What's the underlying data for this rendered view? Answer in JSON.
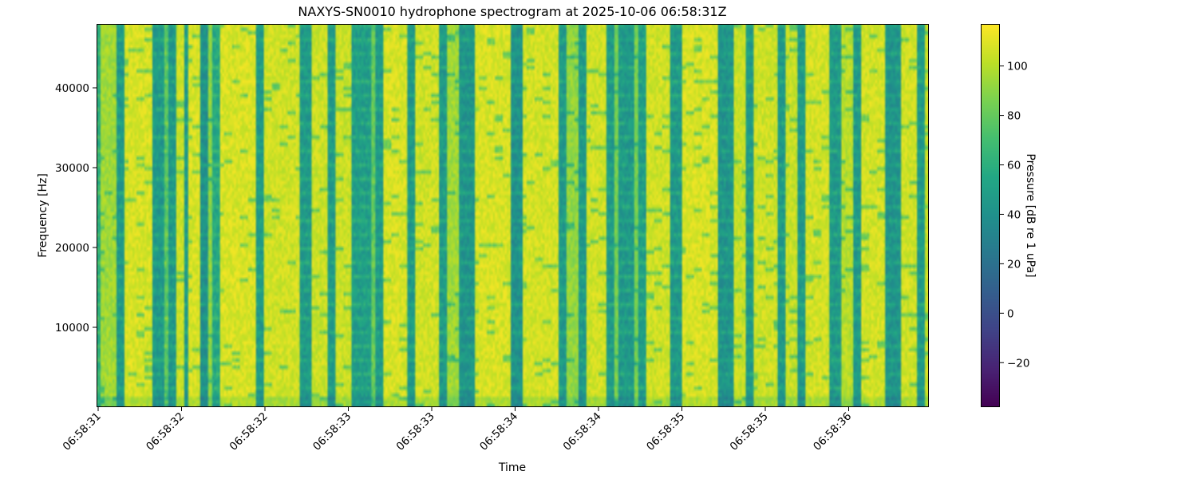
{
  "chart_data": {
    "type": "heatmap",
    "title": "NAXYS-SN0010 hydrophone spectrogram at 2025-10-06 06:58:31Z",
    "xlabel": "Time",
    "ylabel": "Frequency [Hz]",
    "colorbar_label": "Pressure [dB re 1 uPa]",
    "colormap": "viridis",
    "clim": [
      -38,
      117
    ],
    "ylim": [
      0,
      48000
    ],
    "yticks": [
      10000,
      20000,
      30000,
      40000
    ],
    "xtick_labels": [
      "06:58:31",
      "06:58:32",
      "06:58:32",
      "06:58:33",
      "06:58:33",
      "06:58:34",
      "06:58:34",
      "06:58:35",
      "06:58:35",
      "06:58:36"
    ],
    "colorbar_ticks": [
      -20,
      0,
      20,
      40,
      60,
      80,
      100
    ],
    "grid": false,
    "column_level_db": [
      60,
      95,
      95,
      95,
      95,
      45,
      45,
      108,
      108,
      108,
      108,
      108,
      108,
      108,
      45,
      45,
      45,
      75,
      45,
      45,
      105,
      105,
      45,
      108,
      108,
      108,
      40,
      40,
      90,
      55,
      55,
      108,
      108,
      108,
      108,
      108,
      108,
      108,
      108,
      108,
      45,
      45,
      106,
      106,
      106,
      106,
      106,
      106,
      106,
      106,
      106,
      45,
      45,
      45,
      105,
      105,
      105,
      105,
      45,
      45,
      105,
      105,
      105,
      105,
      48,
      48,
      48,
      48,
      48,
      80,
      45,
      45,
      108,
      108,
      108,
      108,
      108,
      108,
      45,
      45,
      106,
      106,
      106,
      106,
      106,
      106,
      45,
      45,
      95,
      95,
      95,
      42,
      42,
      42,
      42,
      108,
      108,
      108,
      108,
      108,
      108,
      108,
      108,
      108,
      40,
      40,
      40,
      107,
      107,
      107,
      107,
      107,
      107,
      107,
      107,
      107,
      45,
      45,
      92,
      92,
      92,
      45,
      45,
      106,
      106,
      106,
      106,
      106,
      45,
      45,
      85,
      45,
      45,
      45,
      45,
      85,
      48,
      48,
      106,
      106,
      106,
      106,
      106,
      106,
      45,
      45,
      45,
      108,
      108,
      108,
      108,
      108,
      108,
      108,
      108,
      108,
      42,
      42,
      42,
      42,
      104,
      104,
      104,
      45,
      45,
      106,
      106,
      106,
      106,
      106,
      106,
      45,
      45,
      104,
      104,
      104,
      45,
      45,
      107,
      107,
      107,
      107,
      107,
      107,
      45,
      45,
      45,
      100,
      100,
      100,
      45,
      45,
      107,
      107,
      107,
      107,
      107,
      107,
      42,
      42,
      42,
      42,
      106,
      106,
      106,
      106,
      45,
      45,
      105
    ]
  }
}
